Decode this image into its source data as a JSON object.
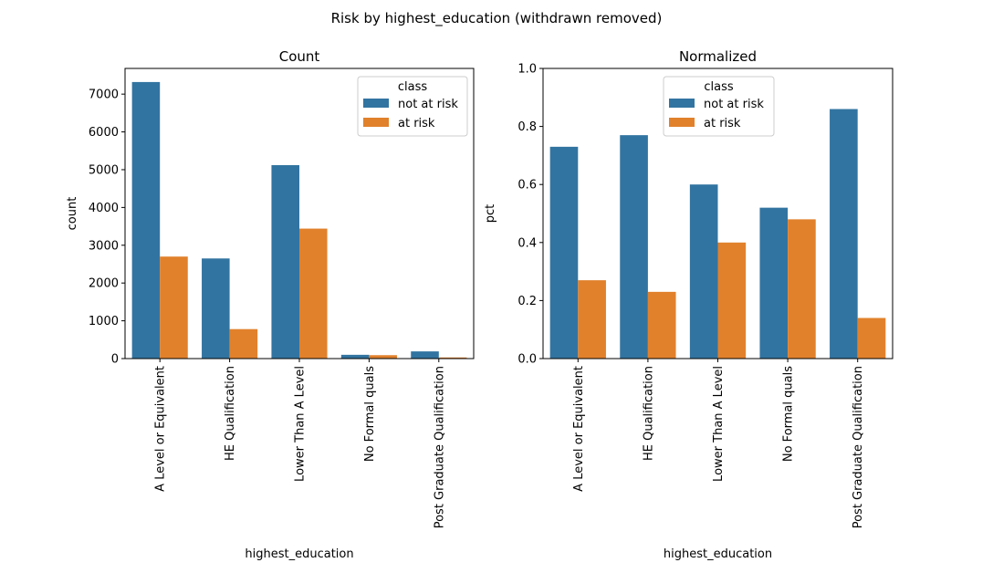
{
  "figure": {
    "suptitle": "Risk by highest_education (withdrawn removed)"
  },
  "chart_data": [
    {
      "type": "bar",
      "title": "Count",
      "xlabel": "highest_education",
      "ylabel": "count",
      "categories": [
        "A Level or Equivalent",
        "HE Qualification",
        "Lower Than A Level",
        "No Formal quals",
        "Post Graduate Qualification"
      ],
      "series": [
        {
          "name": "not at risk",
          "color": "#3274a1",
          "values": [
            7320,
            2650,
            5120,
            100,
            190
          ]
        },
        {
          "name": "at risk",
          "color": "#e1812c",
          "values": [
            2700,
            780,
            3440,
            90,
            30
          ]
        }
      ],
      "ylim": [
        0,
        7680
      ],
      "yticks": [
        0,
        1000,
        2000,
        3000,
        4000,
        5000,
        6000,
        7000
      ],
      "ytick_labels": [
        "0",
        "1000",
        "2000",
        "3000",
        "4000",
        "5000",
        "6000",
        "7000"
      ],
      "legend": {
        "title": "class",
        "position": "top-right"
      }
    },
    {
      "type": "bar",
      "title": "Normalized",
      "xlabel": "highest_education",
      "ylabel": "pct",
      "categories": [
        "A Level or Equivalent",
        "HE Qualification",
        "Lower Than A Level",
        "No Formal quals",
        "Post Graduate Qualification"
      ],
      "series": [
        {
          "name": "not at risk",
          "color": "#3274a1",
          "values": [
            0.73,
            0.77,
            0.6,
            0.52,
            0.86
          ]
        },
        {
          "name": "at risk",
          "color": "#e1812c",
          "values": [
            0.27,
            0.23,
            0.4,
            0.48,
            0.14
          ]
        }
      ],
      "ylim": [
        0,
        1.0
      ],
      "yticks": [
        0,
        0.2,
        0.4,
        0.6,
        0.8,
        1.0
      ],
      "ytick_labels": [
        "0.0",
        "0.2",
        "0.4",
        "0.6",
        "0.8",
        "1.0"
      ],
      "legend": {
        "title": "class",
        "position": "top-center"
      }
    }
  ]
}
